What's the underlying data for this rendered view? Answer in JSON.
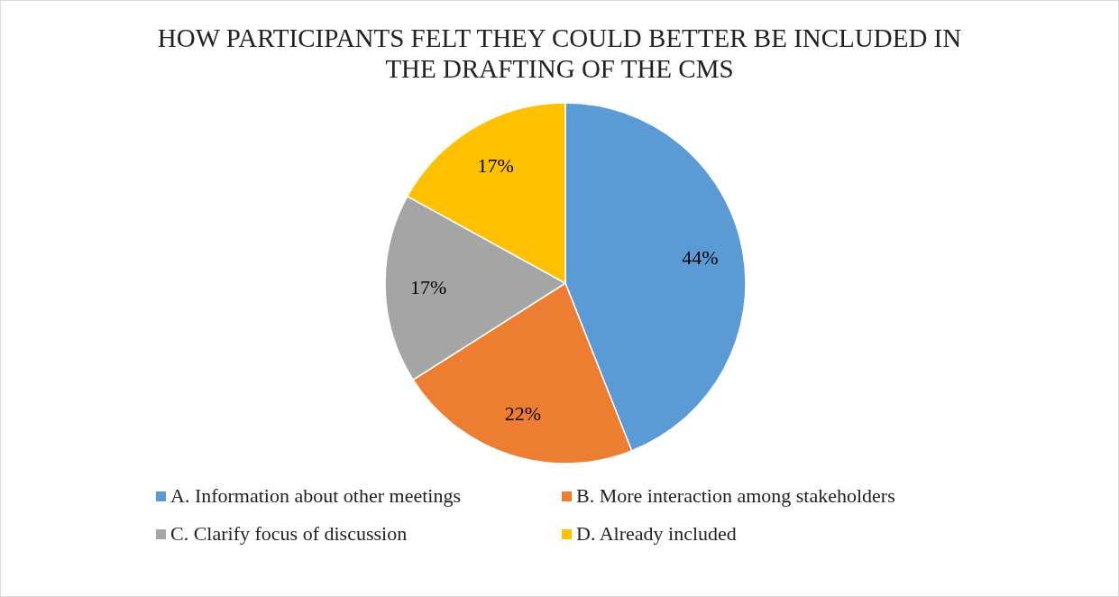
{
  "chart_data": {
    "type": "pie",
    "title": "HOW PARTICIPANTS FELT THEY COULD BETTER BE INCLUDED IN THE DRAFTING OF THE CMS",
    "categories": [
      "A. Information about other meetings",
      "B. More interaction among stakeholders",
      "C. Clarify focus of discussion",
      "D. Already included"
    ],
    "values": [
      44,
      22,
      17,
      17
    ],
    "colors": [
      "#5b9bd5",
      "#ed7d31",
      "#a5a5a5",
      "#ffc000"
    ],
    "value_labels": [
      "44%",
      "22%",
      "17%",
      "17%"
    ],
    "legend": "bottom"
  }
}
